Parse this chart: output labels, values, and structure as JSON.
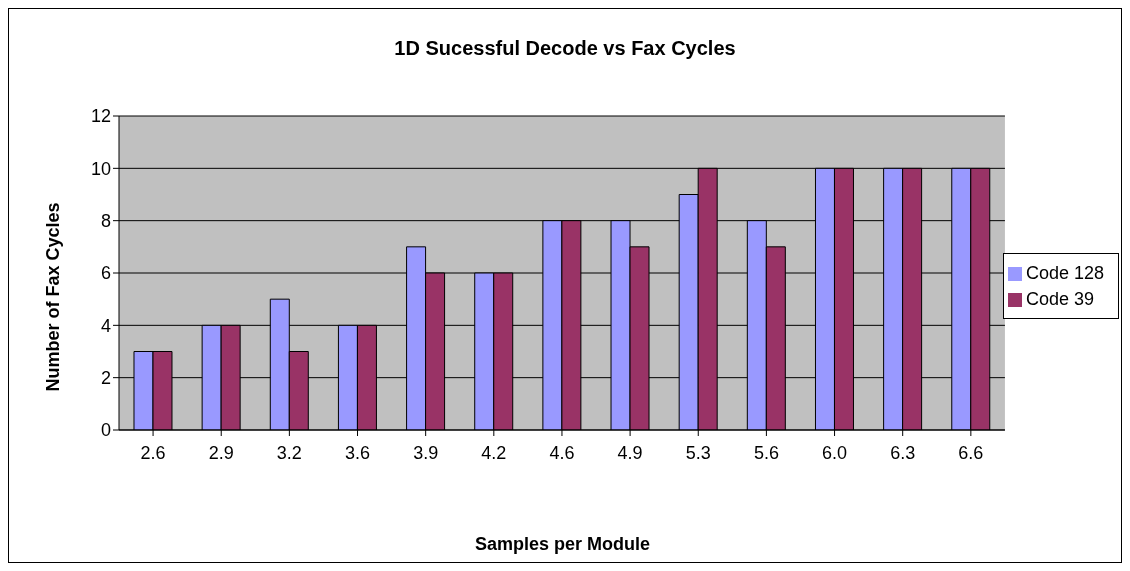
{
  "chart_data": {
    "type": "bar",
    "title": "1D Sucessful Decode vs Fax Cycles",
    "xlabel": "Samples per Module",
    "ylabel": "Number of Fax Cycles",
    "categories": [
      "2.6",
      "2.9",
      "3.2",
      "3.6",
      "3.9",
      "4.2",
      "4.6",
      "4.9",
      "5.3",
      "5.6",
      "6.0",
      "6.3",
      "6.6"
    ],
    "series": [
      {
        "name": "Code 128",
        "color": "#9999ff",
        "values": [
          3,
          4,
          5,
          4,
          7,
          6,
          8,
          8,
          9,
          8,
          10,
          10,
          10
        ]
      },
      {
        "name": "Code 39",
        "color": "#993366",
        "values": [
          3,
          4,
          3,
          4,
          6,
          6,
          8,
          7,
          10,
          7,
          10,
          10,
          10
        ]
      }
    ],
    "ylim": [
      0,
      12
    ],
    "yticks": [
      0,
      2,
      4,
      6,
      8,
      10,
      12
    ],
    "grid": "y",
    "legend": "right"
  }
}
